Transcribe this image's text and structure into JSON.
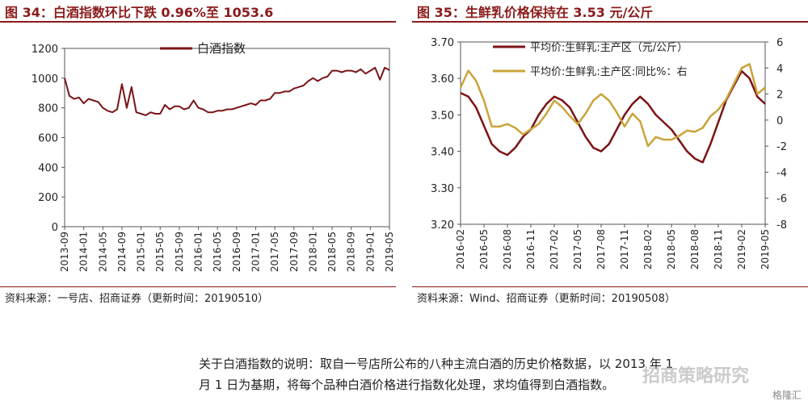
{
  "left": {
    "title": "图 34：白酒指数环比下跌 0.96%至 1053.6",
    "source": "资料来源：一号店、招商证券（更新时间：20190510）",
    "chart_data": {
      "type": "line",
      "legend": "top-center",
      "ylim": [
        0,
        1200
      ],
      "yticks": [
        "0",
        "200",
        "400",
        "600",
        "800",
        "1000",
        "1200"
      ],
      "xticks": [
        "2013-09",
        "2014-01",
        "2014-05",
        "2014-09",
        "2015-01",
        "2015-05",
        "2015-09",
        "2016-01",
        "2016-05",
        "2016-09",
        "2017-01",
        "2017-05",
        "2017-09",
        "2018-01",
        "2018-05",
        "2018-09",
        "2019-01",
        "2019-05"
      ],
      "series": [
        {
          "name": "白酒指数",
          "color": "#7b1416",
          "x": [
            "2013-09",
            "2013-10",
            "2013-11",
            "2013-12",
            "2014-01",
            "2014-02",
            "2014-03",
            "2014-04",
            "2014-05",
            "2014-06",
            "2014-07",
            "2014-08",
            "2014-09",
            "2014-10",
            "2014-11",
            "2014-12",
            "2015-01",
            "2015-02",
            "2015-03",
            "2015-04",
            "2015-05",
            "2015-06",
            "2015-07",
            "2015-08",
            "2015-09",
            "2015-10",
            "2015-11",
            "2015-12",
            "2016-01",
            "2016-02",
            "2016-03",
            "2016-04",
            "2016-05",
            "2016-06",
            "2016-07",
            "2016-08",
            "2016-09",
            "2016-10",
            "2016-11",
            "2016-12",
            "2017-01",
            "2017-02",
            "2017-03",
            "2017-04",
            "2017-05",
            "2017-06",
            "2017-07",
            "2017-08",
            "2017-09",
            "2017-10",
            "2017-11",
            "2017-12",
            "2018-01",
            "2018-02",
            "2018-03",
            "2018-04",
            "2018-05",
            "2018-06",
            "2018-07",
            "2018-08",
            "2018-09",
            "2018-10",
            "2018-11",
            "2018-12",
            "2019-01",
            "2019-02",
            "2019-03",
            "2019-04",
            "2019-05"
          ],
          "values": [
            1000,
            880,
            860,
            870,
            830,
            860,
            850,
            840,
            800,
            780,
            770,
            790,
            960,
            800,
            940,
            770,
            760,
            750,
            770,
            760,
            760,
            820,
            790,
            810,
            810,
            790,
            800,
            850,
            800,
            790,
            770,
            770,
            780,
            780,
            790,
            790,
            800,
            810,
            820,
            830,
            820,
            850,
            850,
            860,
            900,
            900,
            910,
            910,
            930,
            940,
            950,
            980,
            1000,
            980,
            1000,
            1010,
            1050,
            1050,
            1040,
            1050,
            1050,
            1040,
            1060,
            1030,
            1050,
            1070,
            990,
            1070,
            1054
          ]
        }
      ]
    }
  },
  "right": {
    "title": "图 35：生鲜乳价格保持在 3.53 元/公斤",
    "source": "资料来源：Wind、招商证券（更新时间：20190508）",
    "chart_data": {
      "type": "line",
      "legend": "top-left",
      "ylim": [
        3.2,
        3.7
      ],
      "y2lim": [
        -8,
        6
      ],
      "yticks": [
        "3.20",
        "3.30",
        "3.40",
        "3.50",
        "3.60",
        "3.70"
      ],
      "y2ticks": [
        "-8",
        "-6",
        "-4",
        "-2",
        "0",
        "2",
        "4",
        "6"
      ],
      "xticks": [
        "2016-02",
        "2016-05",
        "2016-08",
        "2016-11",
        "2017-02",
        "2017-05",
        "2017-08",
        "2017-11",
        "2018-02",
        "2018-05",
        "2018-08",
        "2018-11",
        "2019-02",
        "2019-05"
      ],
      "series": [
        {
          "name": "平均价:生鲜乳:主产区（元/公斤）",
          "axis": "left",
          "color": "#7b1416",
          "x": [
            "2016-02",
            "2016-03",
            "2016-04",
            "2016-05",
            "2016-06",
            "2016-07",
            "2016-08",
            "2016-09",
            "2016-10",
            "2016-11",
            "2016-12",
            "2017-01",
            "2017-02",
            "2017-03",
            "2017-04",
            "2017-05",
            "2017-06",
            "2017-07",
            "2017-08",
            "2017-09",
            "2017-10",
            "2017-11",
            "2017-12",
            "2018-01",
            "2018-02",
            "2018-03",
            "2018-04",
            "2018-05",
            "2018-06",
            "2018-07",
            "2018-08",
            "2018-09",
            "2018-10",
            "2018-11",
            "2018-12",
            "2019-01",
            "2019-02",
            "2019-03",
            "2019-04",
            "2019-05"
          ],
          "values": [
            3.56,
            3.55,
            3.52,
            3.47,
            3.42,
            3.4,
            3.39,
            3.41,
            3.44,
            3.46,
            3.5,
            3.53,
            3.55,
            3.54,
            3.52,
            3.48,
            3.44,
            3.41,
            3.4,
            3.42,
            3.46,
            3.5,
            3.53,
            3.55,
            3.53,
            3.5,
            3.48,
            3.46,
            3.43,
            3.4,
            3.38,
            3.37,
            3.42,
            3.48,
            3.54,
            3.58,
            3.62,
            3.6,
            3.55,
            3.53
          ]
        },
        {
          "name": "平均价:生鲜乳:主产区:同比%：右",
          "axis": "right",
          "color": "#c9a43a",
          "x": [
            "2016-02",
            "2016-03",
            "2016-04",
            "2016-05",
            "2016-06",
            "2016-07",
            "2016-08",
            "2016-09",
            "2016-10",
            "2016-11",
            "2016-12",
            "2017-01",
            "2017-02",
            "2017-03",
            "2017-04",
            "2017-05",
            "2017-06",
            "2017-07",
            "2017-08",
            "2017-09",
            "2017-10",
            "2017-11",
            "2017-12",
            "2018-01",
            "2018-02",
            "2018-03",
            "2018-04",
            "2018-05",
            "2018-06",
            "2018-07",
            "2018-08",
            "2018-09",
            "2018-10",
            "2018-11",
            "2018-12",
            "2019-01",
            "2019-02",
            "2019-03",
            "2019-04",
            "2019-05"
          ],
          "values": [
            2.5,
            3.8,
            3.0,
            1.5,
            -0.5,
            -0.5,
            -0.3,
            -0.6,
            -1.1,
            -0.7,
            -0.3,
            0.5,
            1.5,
            1.0,
            0.3,
            -0.3,
            0.5,
            1.5,
            2.0,
            1.5,
            0.6,
            -0.5,
            0.5,
            -0.1,
            -2.0,
            -1.3,
            -1.5,
            -1.5,
            -1.2,
            -0.8,
            -0.9,
            -0.6,
            0.3,
            0.8,
            1.6,
            2.8,
            4.0,
            4.3,
            2.0,
            2.5
          ]
        }
      ]
    }
  },
  "note": {
    "line1": "关于白酒指数的说明：取自一号店所公布的八种主流白酒的历史价格数据，以 2013 年 1",
    "line2": "月 1 日为基期，将每个品种白酒价格进行指数化处理，求均值得到白酒指数。"
  },
  "watermark": "格隆汇",
  "watermark2": "招商策略研究"
}
